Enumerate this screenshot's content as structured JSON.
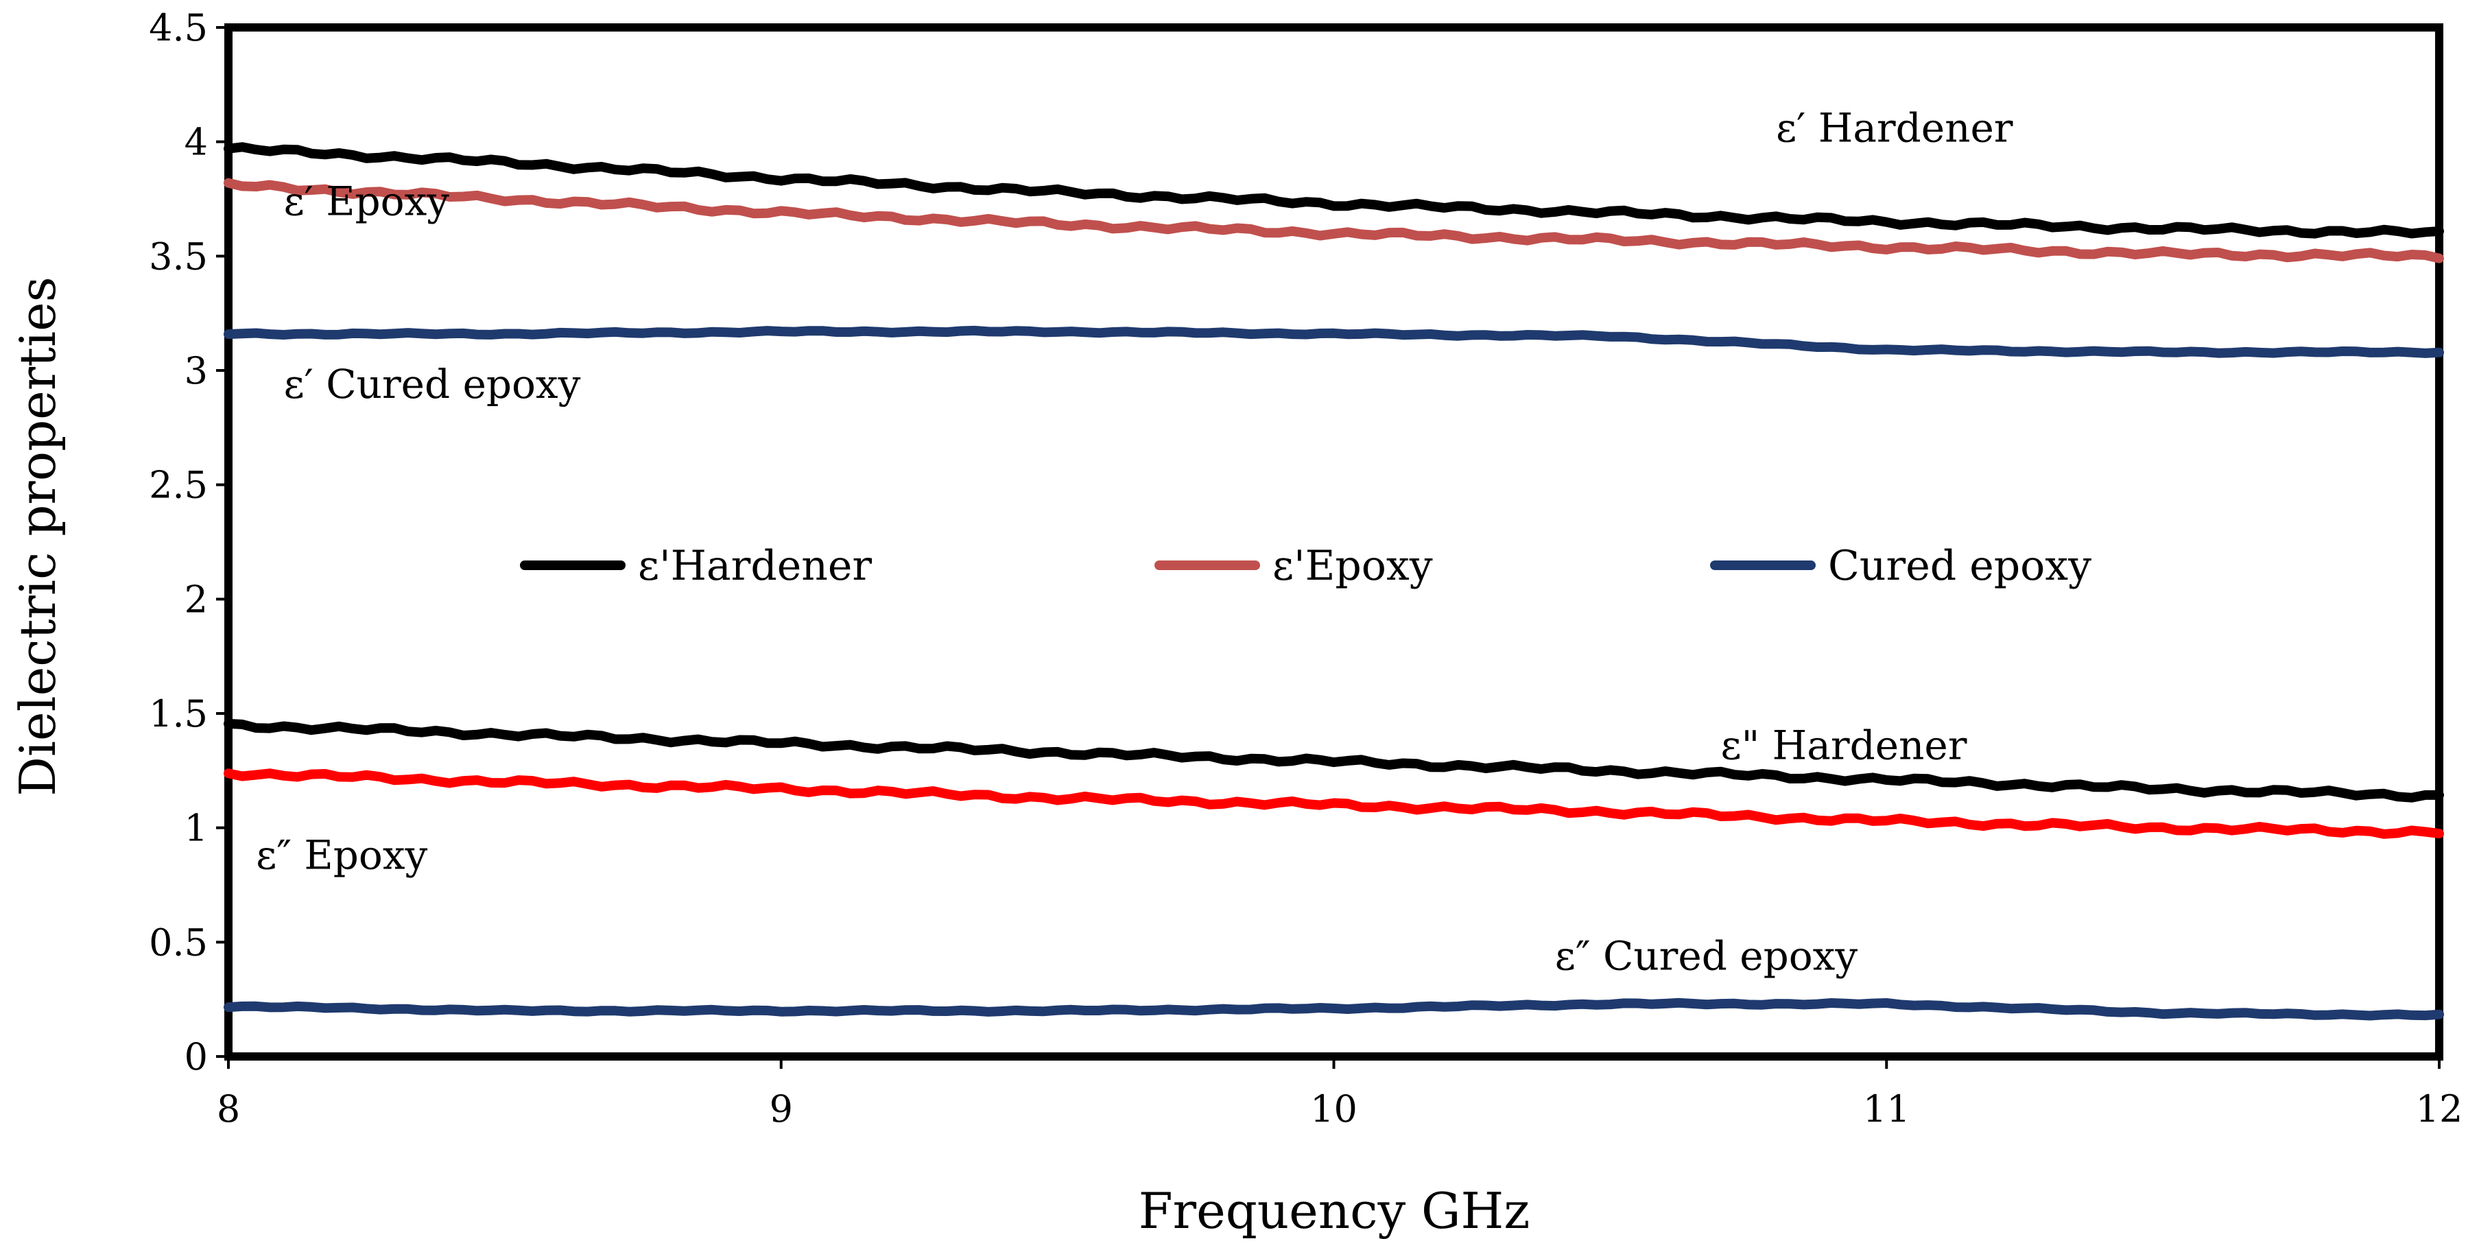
{
  "chart_data": {
    "type": "line",
    "title": "",
    "xlabel": "Frequency GHz",
    "ylabel": "Dielectric properties",
    "xlim": [
      8,
      12
    ],
    "ylim": [
      0,
      4.5
    ],
    "xticks": [
      "8",
      "9",
      "10",
      "11",
      "12"
    ],
    "yticks": [
      "0",
      "0.5",
      "1",
      "1.5",
      "2",
      "2.5",
      "3",
      "3.5",
      "4",
      "4.5"
    ],
    "grid": false,
    "legend_position": "center",
    "legend": [
      {
        "label": "ε'Hardener",
        "color": "#000000"
      },
      {
        "label": "ε'Epoxy",
        "color": "#c0504d"
      },
      {
        "label": "Cured epoxy",
        "color": "#1f3a6e"
      }
    ],
    "x": [
      8.0,
      8.5,
      9.0,
      9.5,
      10.0,
      10.5,
      11.0,
      11.5,
      12.0
    ],
    "series": [
      {
        "name": "ε' Hardener",
        "color": "#000000",
        "values": [
          3.97,
          3.91,
          3.84,
          3.78,
          3.73,
          3.69,
          3.65,
          3.62,
          3.6
        ]
      },
      {
        "name": "ε' Epoxy",
        "color": "#c0504d",
        "values": [
          3.81,
          3.75,
          3.69,
          3.64,
          3.6,
          3.57,
          3.54,
          3.51,
          3.5
        ]
      },
      {
        "name": "ε' Cured epoxy",
        "color": "#1f3a6e",
        "values": [
          3.16,
          3.16,
          3.17,
          3.17,
          3.16,
          3.15,
          3.09,
          3.08,
          3.08
        ]
      },
      {
        "name": "ε'' Hardener",
        "color": "#000000",
        "values": [
          1.45,
          1.41,
          1.37,
          1.33,
          1.29,
          1.25,
          1.21,
          1.17,
          1.14
        ]
      },
      {
        "name": "ε'' Epoxy",
        "color": "#ff0000",
        "values": [
          1.24,
          1.2,
          1.17,
          1.13,
          1.1,
          1.07,
          1.03,
          1.0,
          0.98
        ]
      },
      {
        "name": "ε'' Cured epoxy",
        "color": "#1f3a6e",
        "values": [
          0.22,
          0.2,
          0.2,
          0.2,
          0.21,
          0.23,
          0.23,
          0.19,
          0.18
        ]
      }
    ],
    "annotations": [
      {
        "text": "ε′ Hardener",
        "x": 10.8,
        "y": 4.0
      },
      {
        "text": "ε′ Epoxy",
        "x": 8.1,
        "y": 3.68
      },
      {
        "text": "ε′ Cured epoxy",
        "x": 8.1,
        "y": 2.88
      },
      {
        "text": "ε\" Hardener",
        "x": 10.7,
        "y": 1.3
      },
      {
        "text": "ε″ Epoxy",
        "x": 8.05,
        "y": 0.82
      },
      {
        "text": "ε″ Cured epoxy",
        "x": 10.4,
        "y": 0.38
      }
    ]
  }
}
